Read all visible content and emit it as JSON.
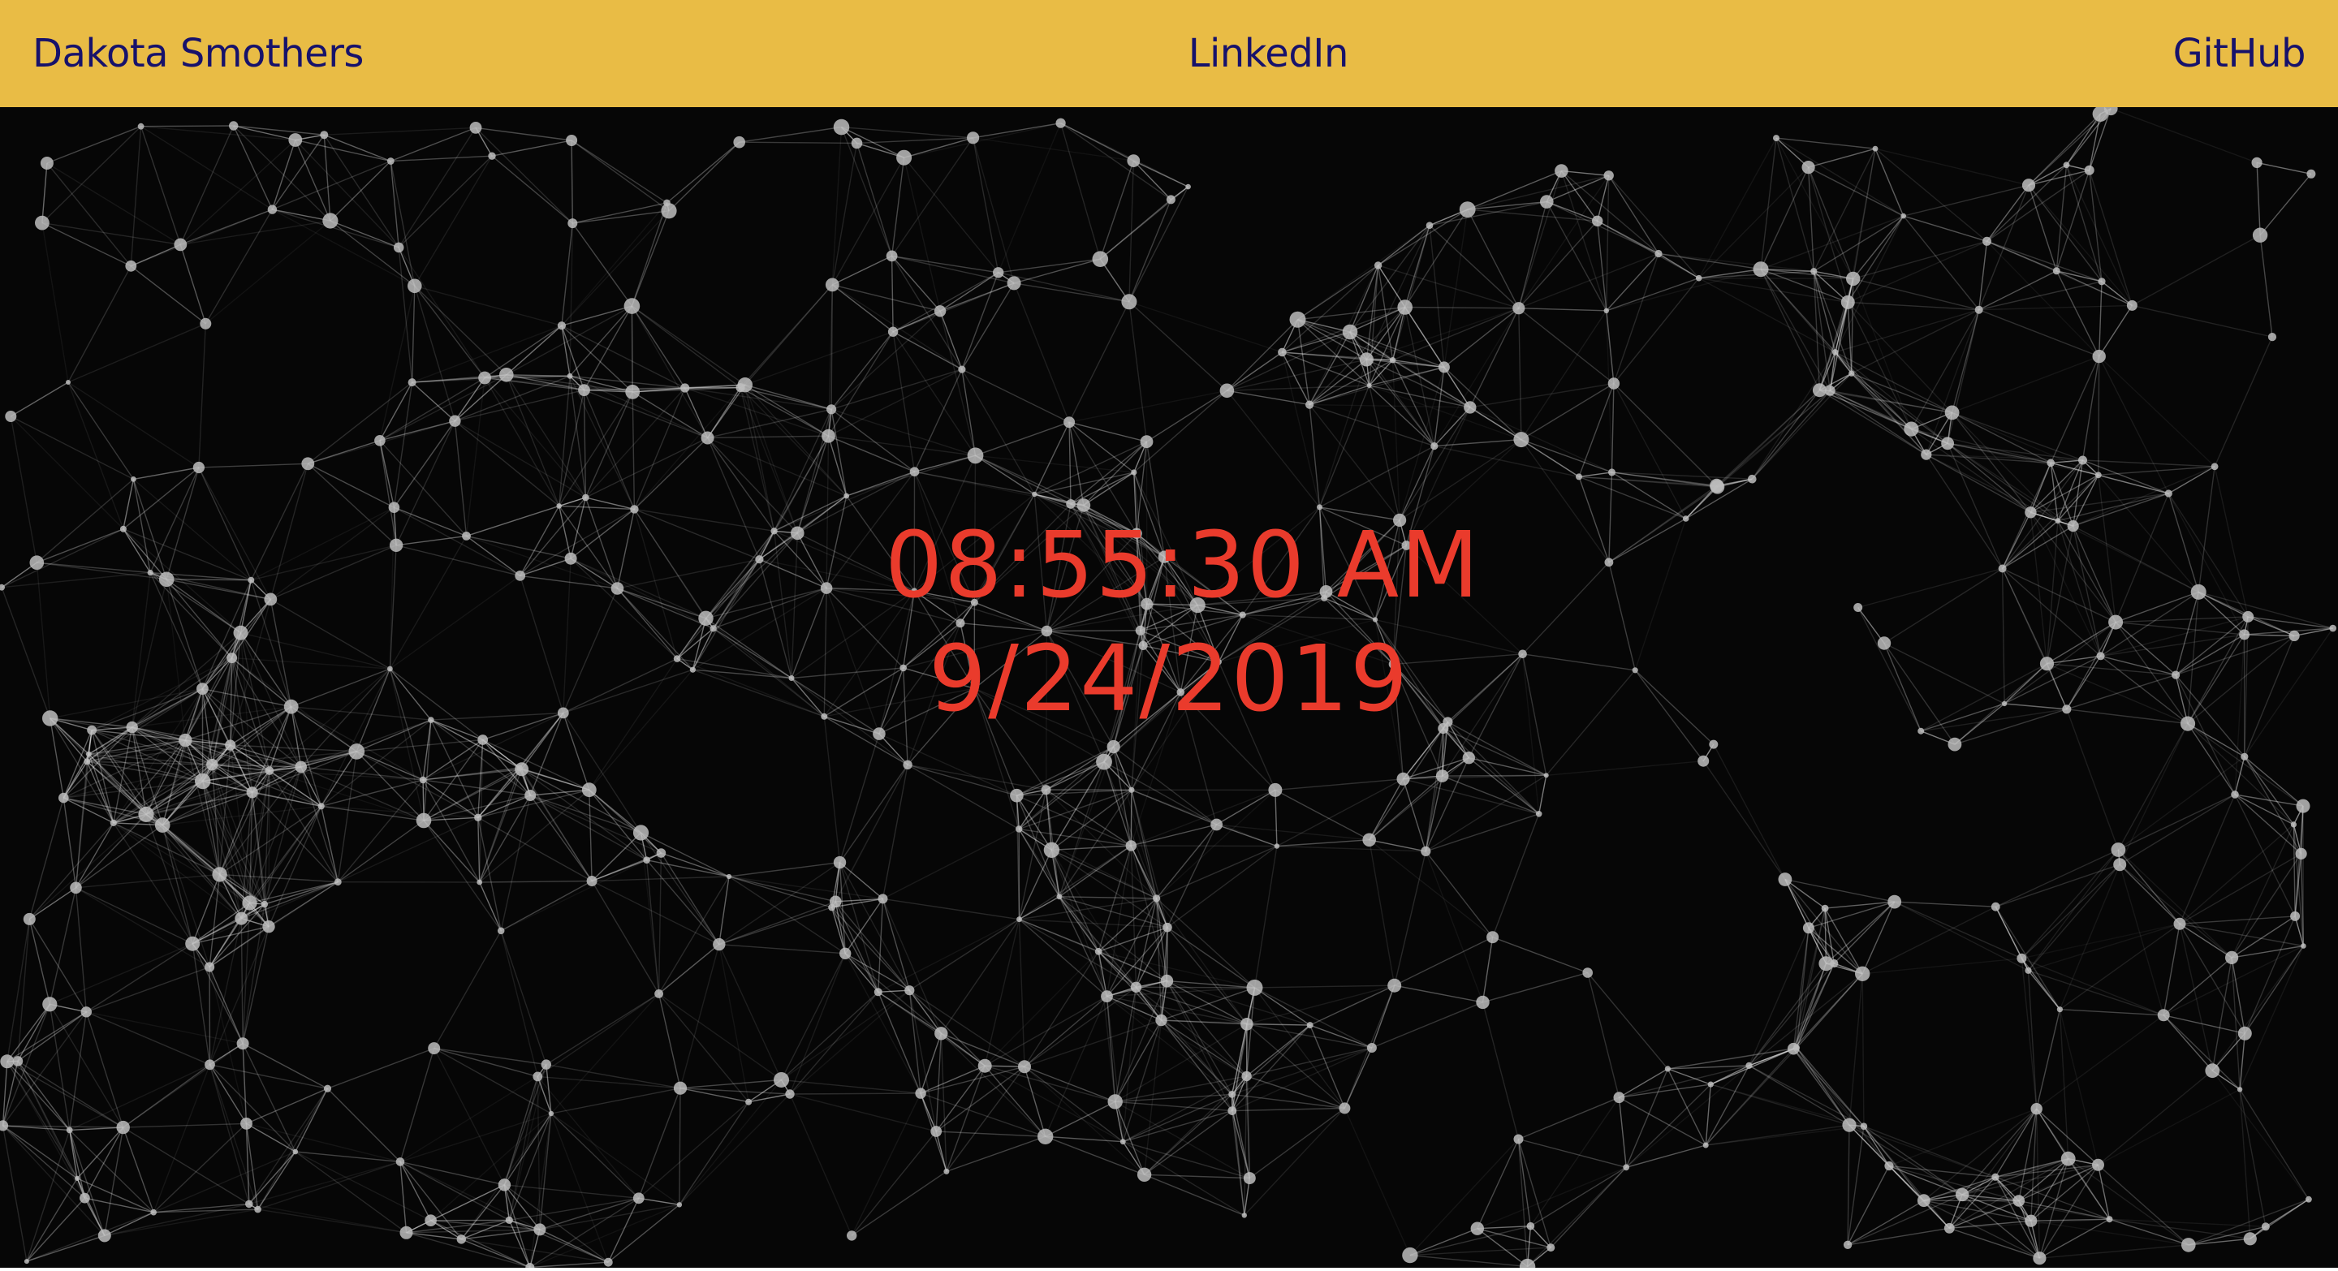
{
  "nav": {
    "name_link": "Dakota Smothers",
    "linkedin_link": "LinkedIn",
    "github_link": "GitHub"
  },
  "clock": {
    "time": "08:55:30 AM",
    "date": "9/24/2019"
  },
  "colors": {
    "nav_background": "#e9bc45",
    "nav_text": "#17126b",
    "clock_text": "#ea3b2c",
    "canvas_background": "#060606",
    "particle": "#ffffff"
  },
  "icons": {
    "background": "particle-network-canvas"
  }
}
